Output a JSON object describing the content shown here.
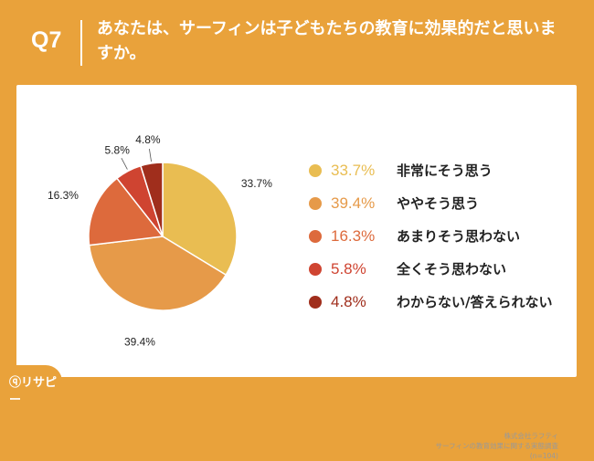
{
  "question": {
    "number": "Q7",
    "text": "あなたは、サーフィンは子どもたちの教育に効果的だと思いますか。"
  },
  "chart_data": {
    "type": "pie",
    "title": "",
    "slices": [
      {
        "label": "非常にそう思う",
        "value": 33.7,
        "display": "33.7%",
        "color": "#e9bd52"
      },
      {
        "label": "ややそう思う",
        "value": 39.4,
        "display": "39.4%",
        "color": "#e69a49"
      },
      {
        "label": "あまりそう思わない",
        "value": 16.3,
        "display": "16.3%",
        "color": "#dd6a3c"
      },
      {
        "label": "全くそう思わない",
        "value": 5.8,
        "display": "5.8%",
        "color": "#cf4431"
      },
      {
        "label": "わからない/答えられない",
        "value": 4.8,
        "display": "4.8%",
        "color": "#a02e1c"
      }
    ],
    "legend_position": "right"
  },
  "source": {
    "company": "株式会社ラフティ",
    "survey": "サーフィンの教育効果に関する実態調査",
    "sample": "(n=104)"
  },
  "brand": {
    "name": "リサピー"
  }
}
